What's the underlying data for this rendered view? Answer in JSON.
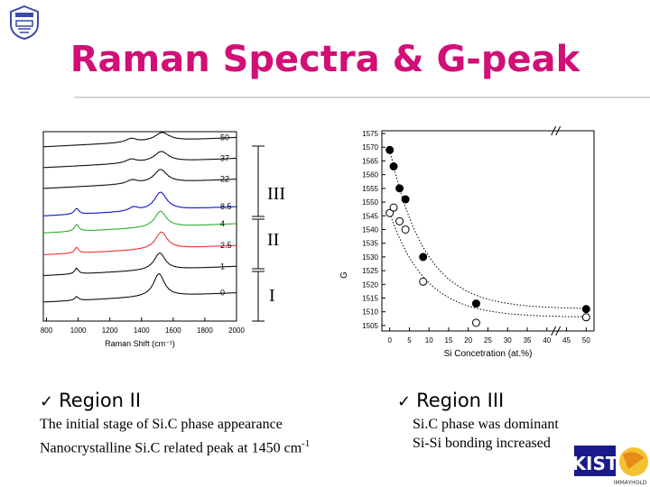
{
  "slide": {
    "title": "Raman Spectra & G-peak"
  },
  "regions": {
    "labels": [
      "III",
      "II",
      "I"
    ]
  },
  "region_ii": {
    "heading": "Region II",
    "lines": [
      "The initial stage of Si.C phase appearance",
      "Nanocrystalline Si.C related peak at 1450 cm"
    ],
    "superscript": "-1"
  },
  "region_iii": {
    "heading": "Region III",
    "lines": [
      "Si.C phase was dominant",
      "Si-Si bonding increased"
    ]
  },
  "logos": {
    "kist_text": "KIST",
    "kist_sub": "IMMAYHOLD"
  },
  "chart_data": [
    {
      "type": "line",
      "xlabel": "Raman Shift (cm⁻¹)",
      "xticks": [
        800,
        1000,
        1200,
        1400,
        1600,
        1800,
        2000
      ],
      "xlim": [
        780,
        2000
      ],
      "series": [
        {
          "name": "50",
          "color": "#000000",
          "base": 0.92,
          "features": [
            [
              1335,
              80,
              0.02
            ],
            [
              1530,
              110,
              0.045
            ]
          ]
        },
        {
          "name": "37",
          "color": "#000000",
          "base": 0.81,
          "features": [
            [
              1335,
              80,
              0.02
            ],
            [
              1525,
              110,
              0.055
            ]
          ]
        },
        {
          "name": "22",
          "color": "#000000",
          "base": 0.7,
          "features": [
            [
              1340,
              80,
              0.02
            ],
            [
              1520,
              100,
              0.07
            ]
          ]
        },
        {
          "name": "8.5",
          "color": "#0000cc",
          "base": 0.555,
          "features": [
            [
              990,
              35,
              0.03
            ],
            [
              1350,
              70,
              0.02
            ],
            [
              1520,
              95,
              0.095
            ]
          ]
        },
        {
          "name": "4",
          "color": "#22aa22",
          "base": 0.465,
          "features": [
            [
              990,
              35,
              0.035
            ],
            [
              1520,
              90,
              0.085
            ]
          ]
        },
        {
          "name": "2.5",
          "color": "#ee2222",
          "base": 0.35,
          "features": [
            [
              990,
              30,
              0.03
            ],
            [
              1525,
              90,
              0.09
            ]
          ]
        },
        {
          "name": "1",
          "color": "#000000",
          "base": 0.24,
          "features": [
            [
              990,
              30,
              0.03
            ],
            [
              1515,
              85,
              0.09
            ]
          ]
        },
        {
          "name": "0",
          "color": "#000000",
          "base": 0.1,
          "features": [
            [
              990,
              30,
              0.02
            ],
            [
              1510,
              85,
              0.12
            ]
          ]
        }
      ]
    },
    {
      "type": "scatter",
      "xlabel": "Si Concetration (at.%)",
      "ylabel": "G",
      "xticks": [
        0,
        5,
        10,
        15,
        20,
        25,
        30,
        35,
        40,
        45,
        50
      ],
      "yticks": [
        1505,
        1510,
        1515,
        1520,
        1525,
        1530,
        1535,
        1540,
        1545,
        1550,
        1555,
        1560,
        1565,
        1570,
        1575
      ],
      "xlim": [
        -2,
        52
      ],
      "ylim": [
        1503,
        1576
      ],
      "x_break": "between 40 and 45",
      "series": [
        {
          "marker": "filled",
          "points": [
            [
              0,
              1569
            ],
            [
              1,
              1563
            ],
            [
              2.5,
              1555
            ],
            [
              4,
              1551
            ],
            [
              8.5,
              1530
            ],
            [
              22,
              1513
            ],
            [
              50,
              1511
            ]
          ]
        },
        {
          "marker": "open",
          "points": [
            [
              0,
              1546
            ],
            [
              1,
              1548
            ],
            [
              2.5,
              1543
            ],
            [
              4,
              1540
            ],
            [
              8.5,
              1521
            ],
            [
              22,
              1506
            ],
            [
              50,
              1508
            ]
          ]
        }
      ]
    }
  ]
}
